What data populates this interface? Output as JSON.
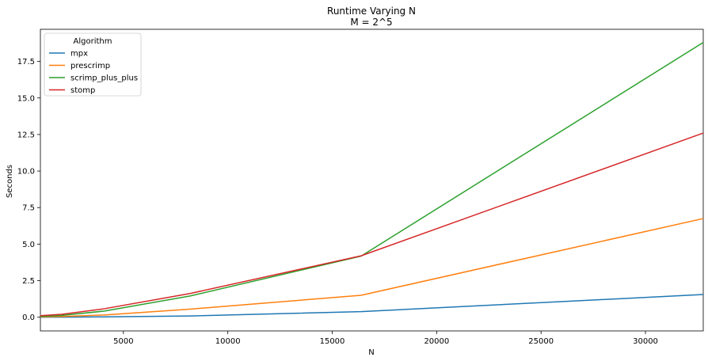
{
  "chart_data": {
    "type": "line",
    "title": "Runtime Varying N",
    "subtitle": "M = 2^5",
    "xlabel": "N",
    "ylabel": "Seconds",
    "xlim": [
      1024,
      32768
    ],
    "ylim": [
      -0.94,
      19.7
    ],
    "x_ticks": [
      5000,
      10000,
      15000,
      20000,
      25000,
      30000
    ],
    "y_ticks": [
      0.0,
      2.5,
      5.0,
      7.5,
      10.0,
      12.5,
      15.0,
      17.5
    ],
    "x_tick_labels": [
      "5000",
      "10000",
      "15000",
      "20000",
      "25000",
      "30000"
    ],
    "y_tick_labels": [
      "0.0",
      "2.5",
      "5.0",
      "7.5",
      "10.0",
      "12.5",
      "15.0",
      "17.5"
    ],
    "grid": false,
    "legend": {
      "title": "Algorithm",
      "placement": "top-left"
    },
    "x": [
      1024,
      2048,
      4096,
      8192,
      16384,
      32768
    ],
    "series": [
      {
        "name": "mpx",
        "color": "#1f77b4",
        "values": [
          0.0,
          0.0,
          0.02,
          0.08,
          0.38,
          1.55
        ]
      },
      {
        "name": "prescrimp",
        "color": "#ff7f0e",
        "values": [
          0.02,
          0.05,
          0.15,
          0.55,
          1.5,
          6.75
        ]
      },
      {
        "name": "scrimp_plus_plus",
        "color": "#2ca02c",
        "values": [
          0.05,
          0.12,
          0.42,
          1.45,
          4.18,
          18.8
        ]
      },
      {
        "name": "stomp",
        "color": "#d62728",
        "values": [
          0.1,
          0.2,
          0.58,
          1.62,
          4.2,
          12.6
        ]
      }
    ]
  }
}
